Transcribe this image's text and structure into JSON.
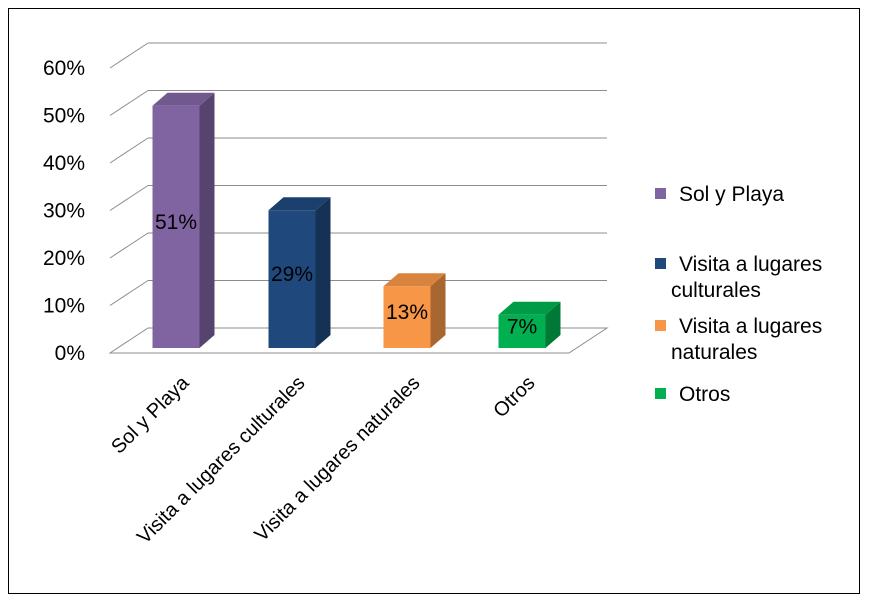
{
  "chart_data": {
    "type": "bar",
    "categories": [
      "Sol y Playa",
      "Visita a lugares culturales",
      "Visita a lugares naturales",
      "Otros"
    ],
    "values": [
      51,
      29,
      13,
      7
    ],
    "data_labels": [
      "51%",
      "29%",
      "13%",
      "7%"
    ],
    "yticks": [
      "0%",
      "10%",
      "20%",
      "30%",
      "40%",
      "50%",
      "60%"
    ],
    "ylim": [
      0,
      60
    ],
    "grid": true,
    "legend_position": "right",
    "colors": [
      "#8064a2",
      "#1f497d",
      "#f79646",
      "#00b050"
    ],
    "legend": [
      {
        "lines": [
          "Sol y Playa"
        ]
      },
      {
        "lines": [
          "Visita a lugares",
          "culturales"
        ]
      },
      {
        "lines": [
          "Visita a lugares",
          "naturales"
        ]
      },
      {
        "lines": [
          "Otros"
        ]
      }
    ]
  }
}
